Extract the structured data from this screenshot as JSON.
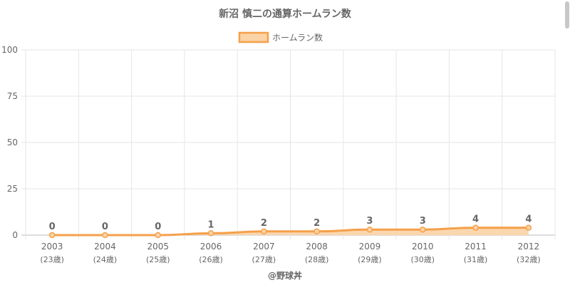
{
  "chart_data": {
    "type": "area",
    "title": "新沼 慎二の通算ホームラン数",
    "legend": {
      "label": "ホームラン数",
      "position": "top"
    },
    "categories": [
      "2003",
      "2004",
      "2005",
      "2006",
      "2007",
      "2008",
      "2009",
      "2010",
      "2011",
      "2012"
    ],
    "sub_labels": [
      "(23歳)",
      "(24歳)",
      "(25歳)",
      "(26歳)",
      "(27歳)",
      "(28歳)",
      "(29歳)",
      "(30歳)",
      "(31歳)",
      "(32歳)"
    ],
    "series": [
      {
        "name": "ホームラン数",
        "values": [
          0,
          0,
          0,
          1,
          2,
          2,
          3,
          3,
          4,
          4
        ]
      }
    ],
    "ylim": [
      0,
      100
    ],
    "yticks": [
      0,
      25,
      50,
      75,
      100
    ],
    "grid": true,
    "colors": {
      "line": "#f5a04a",
      "fill": "#fbd3a6",
      "grid": "#e6e6e6",
      "text": "#666666"
    }
  },
  "footer": {
    "credit": "@野球丼"
  }
}
